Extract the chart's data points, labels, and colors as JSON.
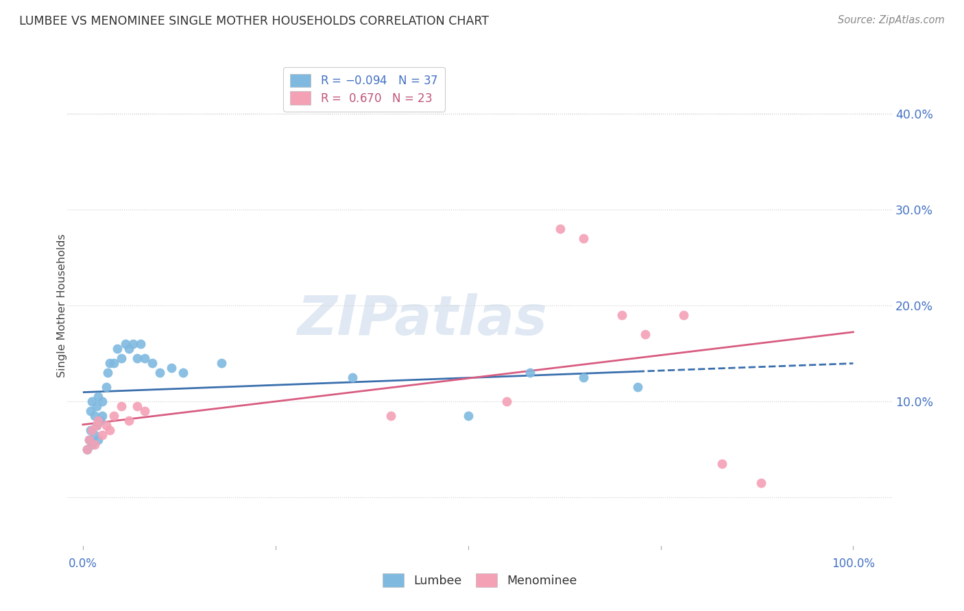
{
  "title": "LUMBEE VS MENOMINEE SINGLE MOTHER HOUSEHOLDS CORRELATION CHART",
  "source": "Source: ZipAtlas.com",
  "ylabel": "Single Mother Households",
  "yticks": [
    0.0,
    0.1,
    0.2,
    0.3,
    0.4
  ],
  "ytick_labels": [
    "",
    "10.0%",
    "20.0%",
    "30.0%",
    "40.0%"
  ],
  "xlim": [
    -0.02,
    1.05
  ],
  "ylim": [
    -0.055,
    0.455
  ],
  "lumbee_R": -0.094,
  "lumbee_N": 37,
  "menominee_R": 0.67,
  "menominee_N": 23,
  "lumbee_color": "#7fb9e0",
  "menominee_color": "#f4a0b5",
  "lumbee_line_color": "#3a6fad",
  "menominee_line_color": "#d85c80",
  "lumbee_x": [
    0.005,
    0.008,
    0.01,
    0.012,
    0.015,
    0.018,
    0.02,
    0.022,
    0.025,
    0.01,
    0.012,
    0.015,
    0.018,
    0.02,
    0.025,
    0.03,
    0.032,
    0.035,
    0.04,
    0.045,
    0.05,
    0.055,
    0.06,
    0.065,
    0.07,
    0.075,
    0.08,
    0.09,
    0.1,
    0.115,
    0.13,
    0.18,
    0.35,
    0.5,
    0.58,
    0.65,
    0.72
  ],
  "lumbee_y": [
    0.05,
    0.06,
    0.07,
    0.055,
    0.065,
    0.075,
    0.06,
    0.08,
    0.085,
    0.09,
    0.1,
    0.085,
    0.095,
    0.105,
    0.1,
    0.115,
    0.13,
    0.14,
    0.14,
    0.155,
    0.145,
    0.16,
    0.155,
    0.16,
    0.145,
    0.16,
    0.145,
    0.14,
    0.13,
    0.135,
    0.13,
    0.14,
    0.125,
    0.085,
    0.13,
    0.125,
    0.115
  ],
  "menominee_x": [
    0.005,
    0.008,
    0.012,
    0.015,
    0.018,
    0.02,
    0.025,
    0.03,
    0.035,
    0.04,
    0.05,
    0.06,
    0.07,
    0.08,
    0.4,
    0.55,
    0.62,
    0.65,
    0.7,
    0.73,
    0.78,
    0.83,
    0.88
  ],
  "menominee_y": [
    0.05,
    0.06,
    0.07,
    0.055,
    0.075,
    0.08,
    0.065,
    0.075,
    0.07,
    0.085,
    0.095,
    0.08,
    0.095,
    0.09,
    0.085,
    0.1,
    0.28,
    0.27,
    0.19,
    0.17,
    0.19,
    0.035,
    0.015
  ],
  "background_color": "#ffffff",
  "grid_color": "#cccccc",
  "lumbee_line_x_solid_end": 0.72,
  "lumbee_line_x_dash_end": 1.0,
  "menominee_line_x_start": 0.0,
  "menominee_line_x_end": 1.0
}
